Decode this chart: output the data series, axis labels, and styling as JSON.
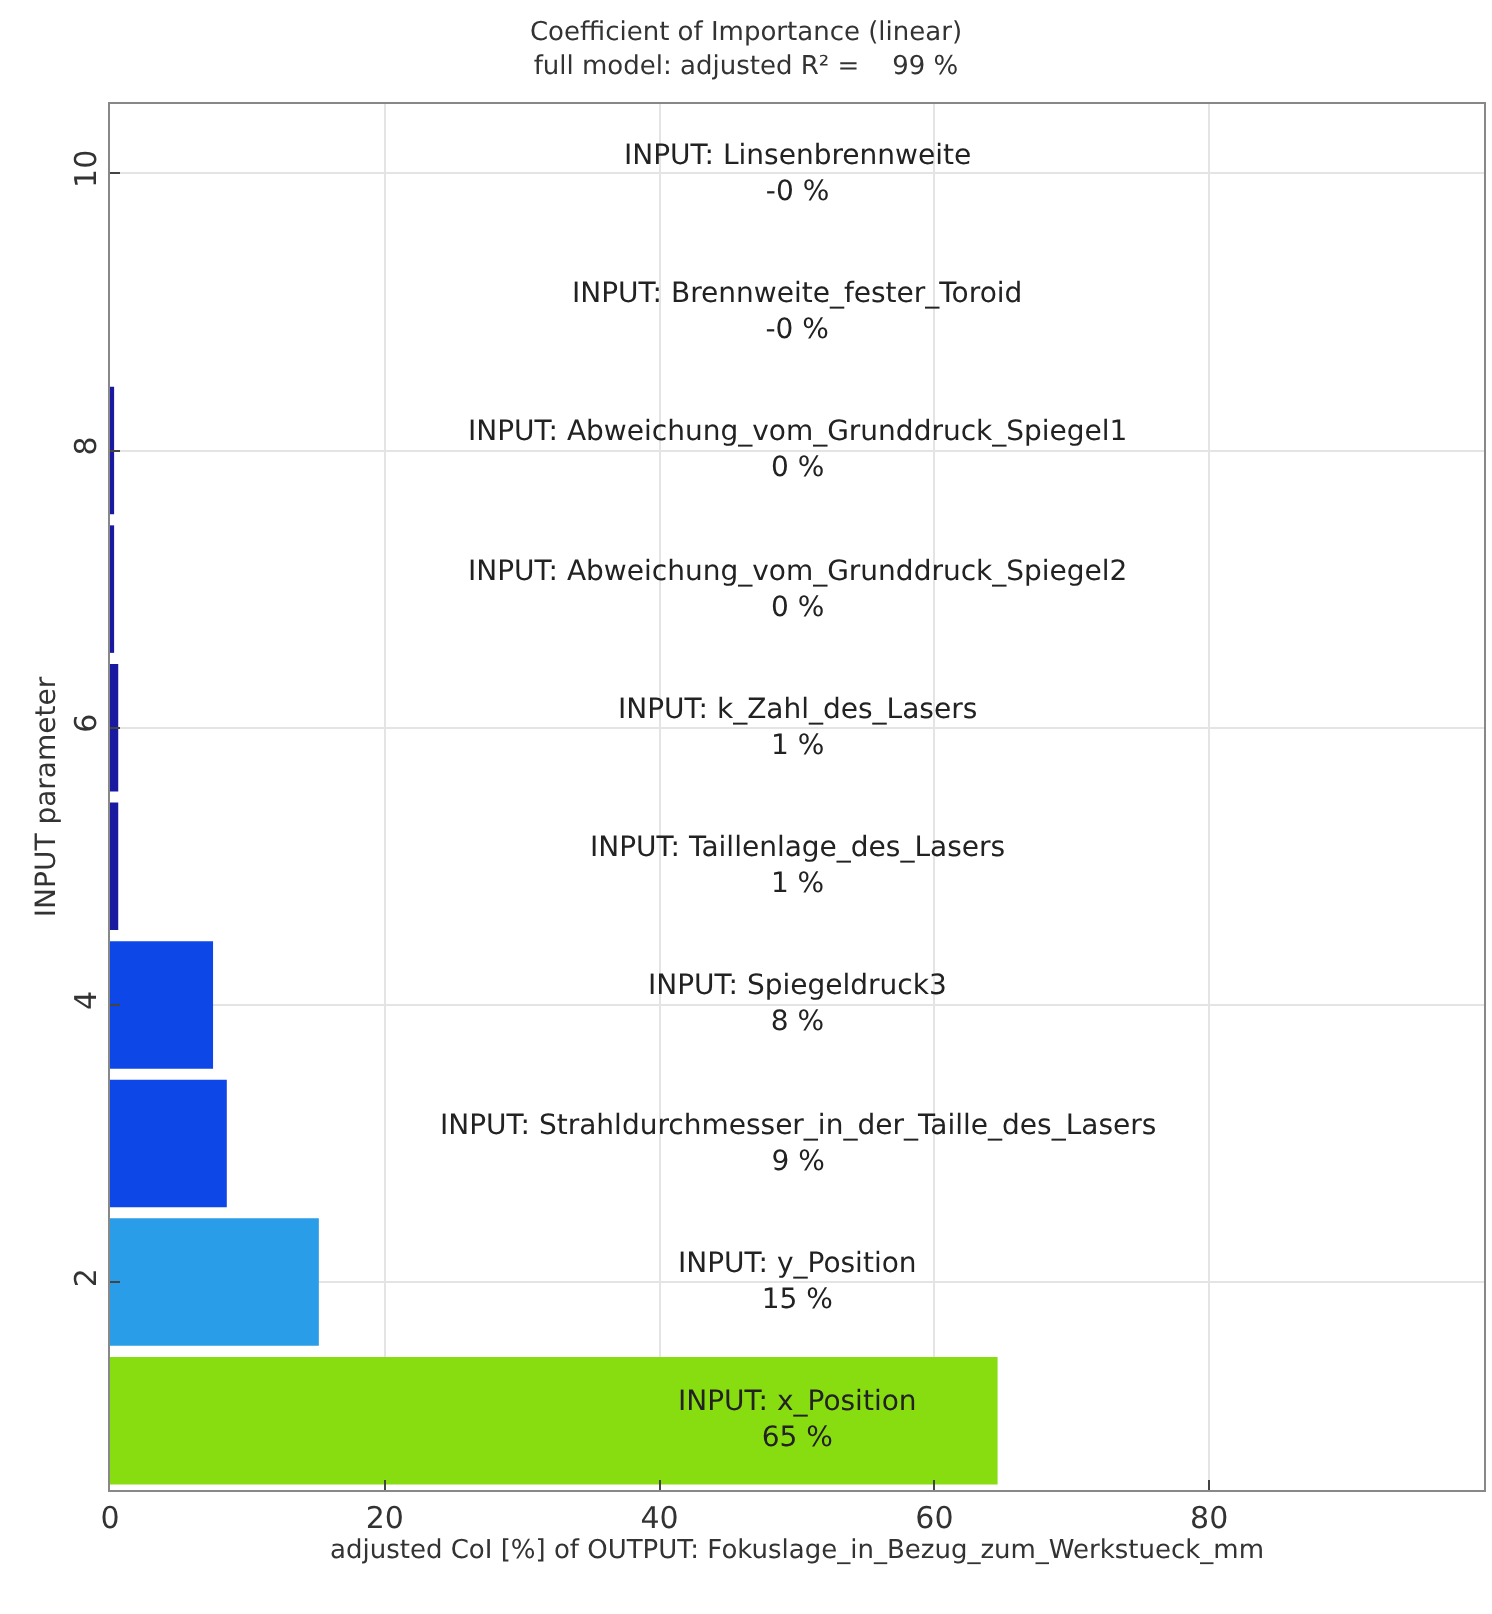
{
  "chart_data": {
    "type": "bar",
    "orientation": "horizontal",
    "title": "Coefficient of Importance (linear)",
    "subtitle": "full model: adjusted R² =    99 %",
    "xlabel": "adjusted CoI [%] of OUTPUT: Fokuslage_in_Bezug_zum_Werkstueck_mm",
    "ylabel": "INPUT parameter",
    "x": [
      10,
      9,
      8,
      7,
      6,
      5,
      4,
      3,
      2,
      1
    ],
    "values": [
      0,
      0,
      0.3,
      0.3,
      0.6,
      0.6,
      7.5,
      8.5,
      15.2,
      64.6
    ],
    "annotations": [
      "INPUT: Linsenbrennweite\n-0 %",
      "INPUT: Brennweite_fester_Toroid\n-0 %",
      "INPUT: Abweichung_vom_Grunddruck_Spiegel1\n0 %",
      "INPUT: Abweichung_vom_Grunddruck_Spiegel2\n0 %",
      "INPUT: k_Zahl_des_Lasers\n1 %",
      "INPUT: Taillenlage_des_Lasers\n1 %",
      "INPUT: Spiegeldruck3\n8 %",
      "INPUT: Strahldurchmesser_in_der_Taille_des_Lasers\n9 %",
      "INPUT: y_Position\n15 %",
      "INPUT: x_Position\n65 %"
    ],
    "colors": [
      "#1a1aa0",
      "#1a1aa0",
      "#1a1aa0",
      "#1a1aa0",
      "#1a1aa0",
      "#1a1aa0",
      "#0d47e8",
      "#0d47e8",
      "#2a9de8",
      "#88dd11"
    ],
    "xlim": [
      0,
      100
    ],
    "xticks": [
      0,
      20,
      40,
      60,
      80
    ],
    "ylim": [
      0.5,
      10.5
    ],
    "yticks": [
      2,
      4,
      6,
      8,
      10
    ],
    "grid": true,
    "legend": false
  }
}
